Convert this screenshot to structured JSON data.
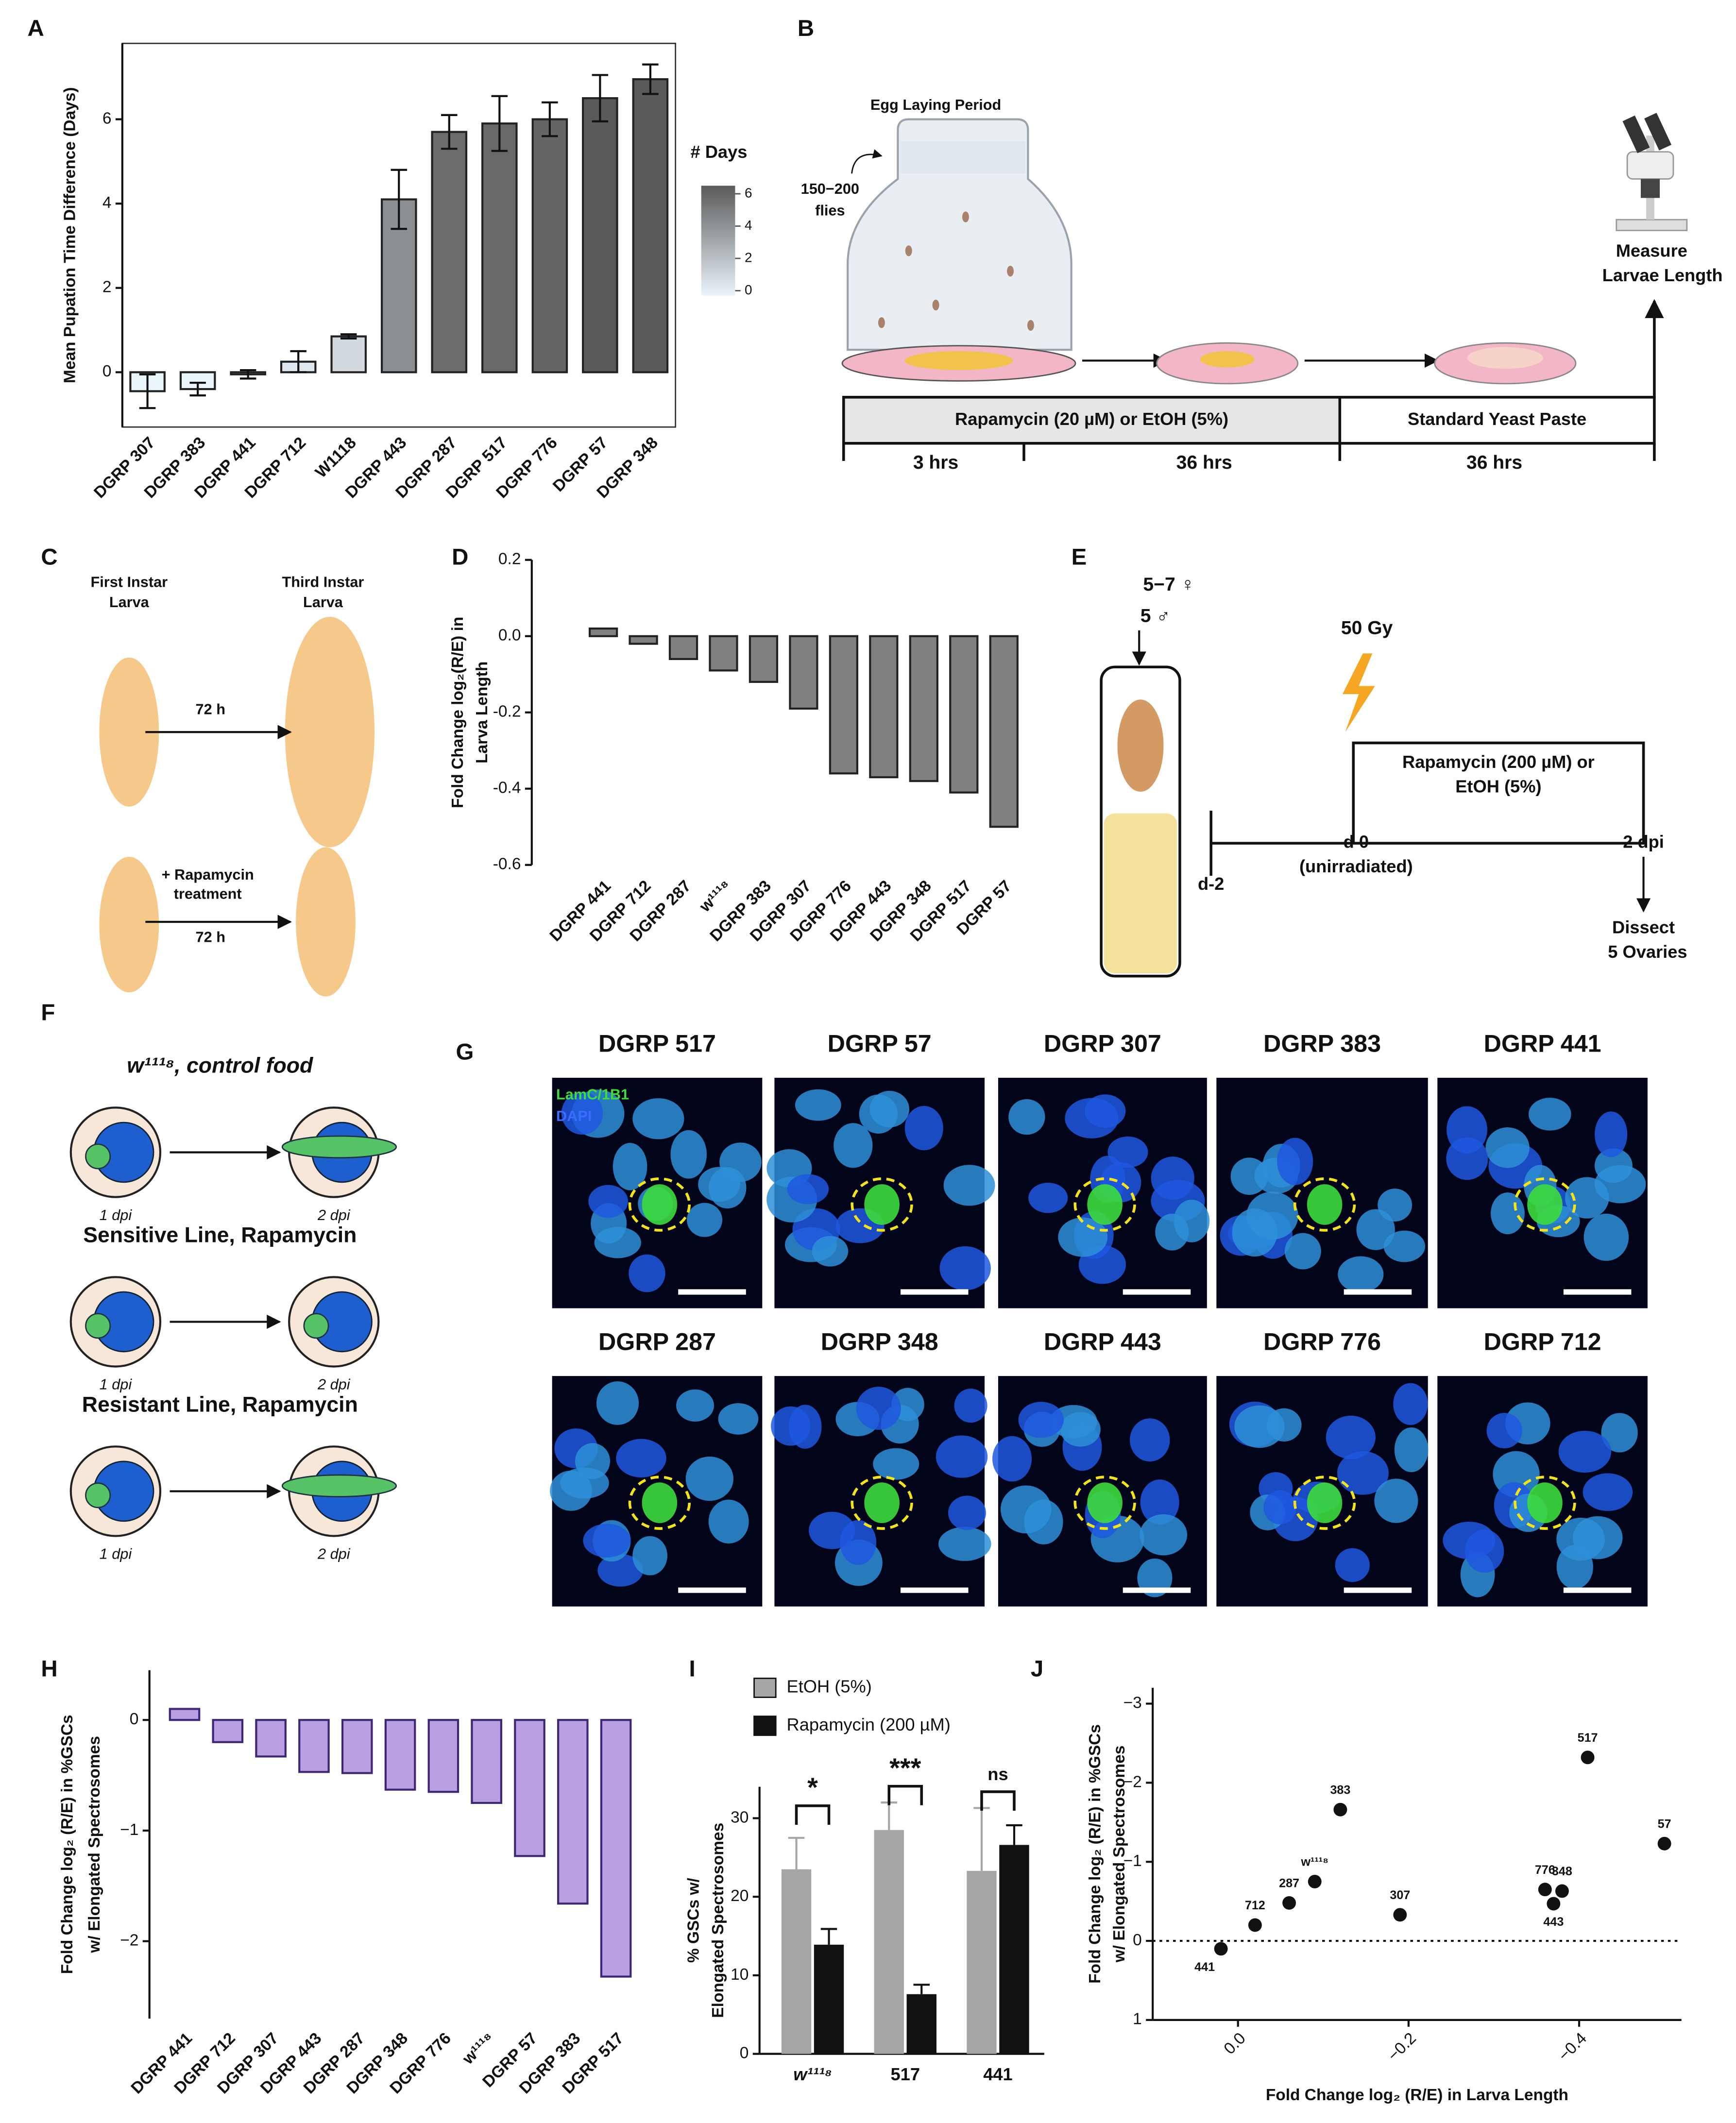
{
  "panel_labels": [
    "A",
    "B",
    "C",
    "D",
    "E",
    "F",
    "G",
    "H",
    "I",
    "J"
  ],
  "chart_data": [
    {
      "type": "bar",
      "y_label": [
        "Mean Pupation Time Difference (Days)"
      ],
      "categories": [
        "DGRP 307",
        "DGRP 383",
        "DGRP 441",
        "DGRP 712",
        "W1118",
        "DGRP 443",
        "DGRP 287",
        "DGRP 517",
        "DGRP 776",
        "DGRP 57",
        "DGRP 348"
      ],
      "values": [
        -0.45,
        -0.4,
        -0.05,
        0.25,
        0.85,
        4.1,
        5.7,
        5.9,
        6.0,
        6.5,
        6.95
      ],
      "errors": [
        0.4,
        0.15,
        0.1,
        0.25,
        0.05,
        0.7,
        0.4,
        0.65,
        0.4,
        0.55,
        0.35
      ],
      "ylim": [
        -1.3,
        7.8
      ],
      "yticks": [
        0,
        2,
        4,
        6
      ],
      "edge_color": "#222222",
      "colorbar": {
        "title": "# Days",
        "lim": [
          -0.3,
          6.5
        ],
        "ticks": [
          0,
          2,
          4,
          6
        ],
        "colors": [
          "#eaf4fb",
          "#5a5a5a"
        ]
      }
    },
    {
      "type": "bar",
      "y_label": [
        "Fold Change log₂(R/E) in",
        "Larva Length"
      ],
      "categories": [
        "DGRP 441",
        "DGRP 712",
        "DGRP 287",
        "w¹¹¹⁸",
        "DGRP 383",
        "DGRP 307",
        "DGRP 776",
        "DGRP 443",
        "DGRP 348",
        "DGRP 517",
        "DGRP 57"
      ],
      "values": [
        0.02,
        -0.02,
        -0.06,
        -0.09,
        -0.12,
        -0.19,
        -0.36,
        -0.37,
        -0.38,
        -0.41,
        -0.5
      ],
      "ylim": [
        -0.6,
        0.2
      ],
      "yticks": [
        0.2,
        {
          "value": 0,
          "label": "0.0"
        },
        -0.2,
        -0.4,
        -0.6
      ],
      "color": "#808080",
      "edge_color": "#222222"
    },
    {
      "type": "bar",
      "y_label": [
        "Fold Change log₂ (R/E) in %GSCs",
        "w/ Elongated Spectrosomes"
      ],
      "categories": [
        "DGRP 441",
        "DGRP 712",
        "DGRP 307",
        "DGRP 443",
        "DGRP 287",
        "DGRP 348",
        "DGRP 776",
        "w¹¹¹⁸",
        "DGRP 57",
        "DGRP 383",
        "DGRP 517"
      ],
      "values": [
        0.1,
        -0.2,
        -0.33,
        -0.47,
        -0.48,
        -0.63,
        -0.65,
        -0.75,
        -1.23,
        -1.66,
        -2.32
      ],
      "ylim": [
        -2.7,
        0.45
      ],
      "yticks": [
        0,
        {
          "value": -1,
          "label": "−1"
        },
        {
          "value": -2,
          "label": "−2"
        }
      ],
      "color": "#b9a0e2",
      "edge_color": "#3f2675"
    },
    {
      "type": "grouped_bar",
      "y_label": [
        "% GSCs w/",
        "Elongated Spectrosomes"
      ],
      "categories": [
        "w¹¹¹⁸",
        "517",
        "441"
      ],
      "series": [
        {
          "name": "EtOH (5%)",
          "color": "#a6a6a6",
          "values": [
            23.5,
            28.5,
            23.3
          ],
          "errors": [
            4,
            3.5,
            8
          ]
        },
        {
          "name": "Rapamycin (200 µM)",
          "color": "#111111",
          "values": [
            13.9,
            7.6,
            26.6
          ],
          "errors": [
            2,
            1.2,
            2.5
          ]
        }
      ],
      "significance": [
        "*",
        "***",
        "ns"
      ],
      "ylim": [
        0,
        34
      ],
      "yticks": [
        0,
        10,
        20,
        30
      ]
    },
    {
      "type": "scatter",
      "x_label": "Fold Change log₂ (R/E) in Larva Length",
      "y_label": [
        "Fold Change log₂ (R/E) in %GSCs",
        "w/ Elongated Spectrosomes"
      ],
      "labels": [
        "441",
        "712",
        "287",
        "w¹¹¹⁸",
        "383",
        "307",
        "776",
        "443",
        "348",
        "517",
        "57"
      ],
      "x": [
        0.02,
        -0.02,
        -0.06,
        -0.09,
        -0.12,
        -0.19,
        -0.36,
        -0.37,
        -0.38,
        -0.41,
        -0.5
      ],
      "y": [
        0.1,
        -0.2,
        -0.48,
        -0.75,
        -1.66,
        -0.33,
        -0.65,
        -0.47,
        -0.63,
        -2.32,
        -1.23
      ],
      "xlim": [
        0.1,
        -0.52
      ],
      "xticks": [
        {
          "value": 0,
          "label": "0.0"
        },
        {
          "value": -0.2,
          "label": "−0.2"
        },
        {
          "value": -0.4,
          "label": "−0.4"
        }
      ],
      "ylim": [
        1,
        -3.2
      ],
      "yticks": [
        {
          "value": -3,
          "label": "−3"
        },
        {
          "value": -2,
          "label": "−2"
        },
        {
          "value": -1,
          "label": "−1"
        },
        0,
        1
      ],
      "reference_line": 0,
      "color": "#111111"
    }
  ],
  "panel_b": {
    "egg_laying": "Egg Laying Period",
    "flies": [
      "150−200",
      "flies"
    ],
    "measure": [
      "Measure",
      "Larvae Length"
    ],
    "treatment": "Rapamycin (20 µM) or EtOH (5%)",
    "standard": "Standard Yeast Paste",
    "durations": [
      "3 hrs",
      "36 hrs",
      "36 hrs"
    ]
  },
  "panel_c": {
    "first": [
      "First Instar",
      "Larva"
    ],
    "third": [
      "Third Instar",
      "Larva"
    ],
    "time_top": "72 h",
    "treatment": [
      "+ Rapamycin",
      "treatment"
    ],
    "time_bottom": "72 h"
  },
  "panel_e": {
    "females": "5−7 ♀",
    "males": "5 ♂",
    "dose": "50 Gy",
    "treatment": [
      "Rapamycin (200 µM) or",
      "EtOH (5%)"
    ],
    "timepoints": [
      "d-2",
      "d 0",
      "2 dpi"
    ],
    "unirradiated": "(unirradiated)",
    "dissect": [
      "Dissect",
      "5 Ovaries"
    ]
  },
  "panel_f": {
    "rows": [
      {
        "title": "w¹¹¹⁸, control food",
        "left": "1 dpi",
        "right": "2 dpi"
      },
      {
        "title": "Sensitive Line, Rapamycin",
        "left": "1 dpi",
        "right": "2 dpi"
      },
      {
        "title": "Resistant Line, Rapamycin",
        "left": "1 dpi",
        "right": "2 dpi"
      }
    ]
  },
  "panel_g": {
    "stain_green": "LamC/1B1",
    "stain_blue": "DAPI",
    "images": [
      "DGRP 517",
      "DGRP 57",
      "DGRP 307",
      "DGRP 383",
      "DGRP 441",
      "DGRP 287",
      "DGRP 348",
      "DGRP 443",
      "DGRP 776",
      "DGRP 712"
    ]
  }
}
